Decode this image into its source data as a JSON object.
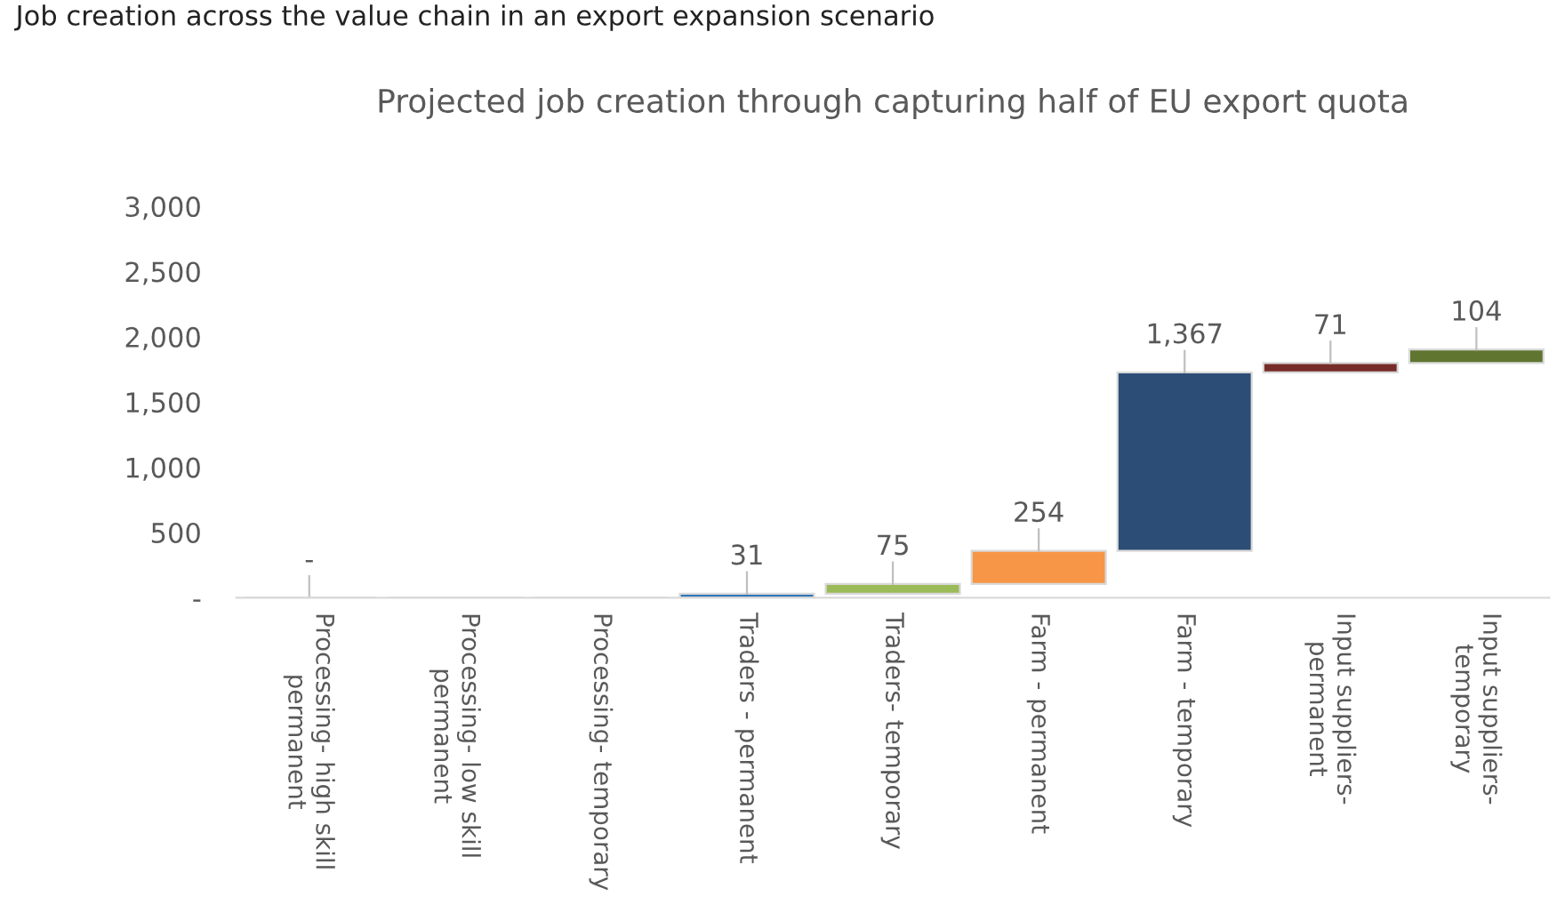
{
  "chart_data": {
    "type": "bar",
    "title": "Projected job creation through capturing half of EU export quota",
    "subtitle": "Job creation across the value chain in an export expansion scenario",
    "categories": [
      "Processing- high skill\npermanent",
      "Processing- low skill\npermanent",
      "Processing- temporary",
      "Traders - permanent",
      "Traders- temporary",
      "Farm - permanent",
      "Farm - temporary",
      "Input suppliers-\npermanent",
      "Input suppliers-\ntemporary"
    ],
    "values": [
      0,
      0,
      0,
      31,
      75,
      254,
      1367,
      71,
      104
    ],
    "base": [
      null,
      null,
      null,
      0,
      31,
      106,
      360,
      1727,
      1798
    ],
    "colors": [
      "#2e75b6",
      "#2e75b6",
      "#2e75b6",
      "#2e75b6",
      "#9bbb59",
      "#f79646",
      "#2c4d75",
      "#772c2a",
      "#5f7530"
    ],
    "value_labels": [
      "-",
      null,
      null,
      "31",
      "75",
      "254",
      "1,367",
      "71",
      "104"
    ],
    "ylim": [
      0,
      3000
    ],
    "yticks": [
      {
        "value": 0,
        "label": "-"
      },
      {
        "value": 500,
        "label": "500"
      },
      {
        "value": 1000,
        "label": "1,000"
      },
      {
        "value": 1500,
        "label": "1,500"
      },
      {
        "value": 2000,
        "label": "2,000"
      },
      {
        "value": 2500,
        "label": "2,500"
      },
      {
        "value": 3000,
        "label": "3,000"
      }
    ],
    "grid": false,
    "legend": false
  }
}
